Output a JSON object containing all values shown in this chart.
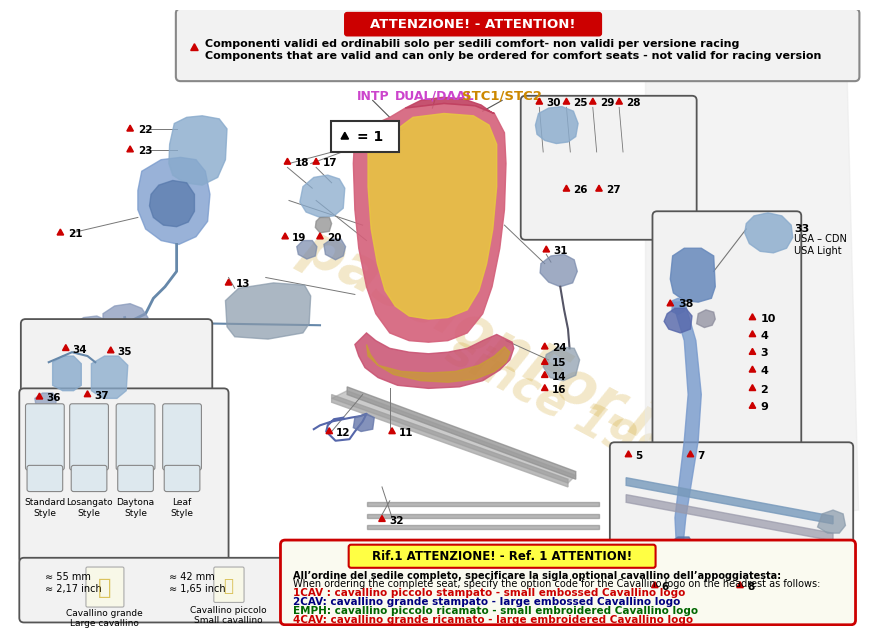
{
  "bg_color": "#ffffff",
  "attn_title": "ATTENZIONE! - ATTENTION!",
  "attn_text1": "Componenti validi ed ordinabili solo per sedili comfort- non validi per versione racing",
  "attn_text2": "Components that are valid and can only be ordered for comfort seats - not valid for racing version",
  "ref_title": "Rif.1 ATTENZIONE! - Ref. 1 ATTENTION!",
  "ref_line1": "All’ordine del sedile completo, specificare la sigla optional cavallino dell’appoggiatesta:",
  "ref_line2": "When ordering the complete seat, specify the option code for the Cavallino logo on the headrest as follows:",
  "ref_line3": "1CAV : cavallino piccolo stampato - small embossed Cavallino logo",
  "ref_line4": "2CAV: cavallino grande stampato - large embossed Cavallino logo",
  "ref_line5": "EMPH: cavallino piccolo ricamato - small embroidered Cavallino logo",
  "ref_line6": "4CAV: cavallino grande ricamato - large embroidered Cavallino logo",
  "watermark1": "passionFor.it",
  "watermark2": "since 1995",
  "label_INTP": "INTP",
  "label_DUAL": "DUAL/DAAL",
  "label_STC": "STC1/STC2",
  "style_labels": [
    "Standard\nStyle",
    "Losangato\nStyle",
    "Daytona\nStyle",
    "Leaf\nStyle"
  ],
  "cavallino_grande": "Cavallino grande\nLarge cavallino",
  "cavallino_piccolo": "Cavallino piccolo\nSmall cavallino",
  "meas_grande": "≈ 55 mm\n≈ 2,17 inch",
  "meas_piccolo": "≈ 42 mm\n≈ 1,65 inch",
  "usa_text": "USA – CDN\nUSA Light"
}
